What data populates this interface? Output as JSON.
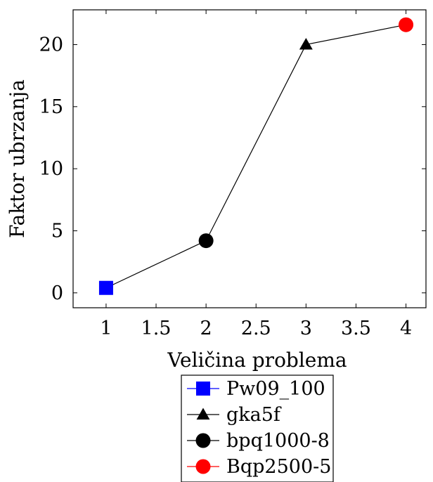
{
  "chart_data": {
    "type": "line",
    "title": "",
    "xlabel": "Veličina problema",
    "ylabel": "Faktor ubrzanja",
    "xlim": [
      0.67,
      4.2
    ],
    "ylim": [
      -1.2,
      22.8
    ],
    "x_ticks": [
      "1",
      "1.5",
      "2",
      "2.5",
      "3",
      "3.5",
      "4"
    ],
    "x_tick_values": [
      1,
      1.5,
      2,
      2.5,
      3,
      3.5,
      4
    ],
    "y_ticks": [
      "0",
      "5",
      "10",
      "15",
      "20"
    ],
    "y_tick_values": [
      0,
      5,
      10,
      15,
      20
    ],
    "grid": false,
    "legend_position": "below",
    "line_color": "#000000",
    "x": [
      1,
      2,
      3,
      4
    ],
    "y": [
      0.4,
      4.2,
      20.0,
      21.6
    ],
    "series": [
      {
        "name": "Pw09_100",
        "x": 1,
        "y": 0.4,
        "marker": "square",
        "color": "#0000ff"
      },
      {
        "name": "gka5f",
        "x": 3,
        "y": 20.0,
        "marker": "triangle",
        "color": "#000000"
      },
      {
        "name": "bpq1000-8",
        "x": 2,
        "y": 4.2,
        "marker": "circle",
        "color": "#000000"
      },
      {
        "name": "Bqp2500-5",
        "x": 4,
        "y": 21.6,
        "marker": "circle",
        "color": "#ff0000"
      }
    ]
  }
}
